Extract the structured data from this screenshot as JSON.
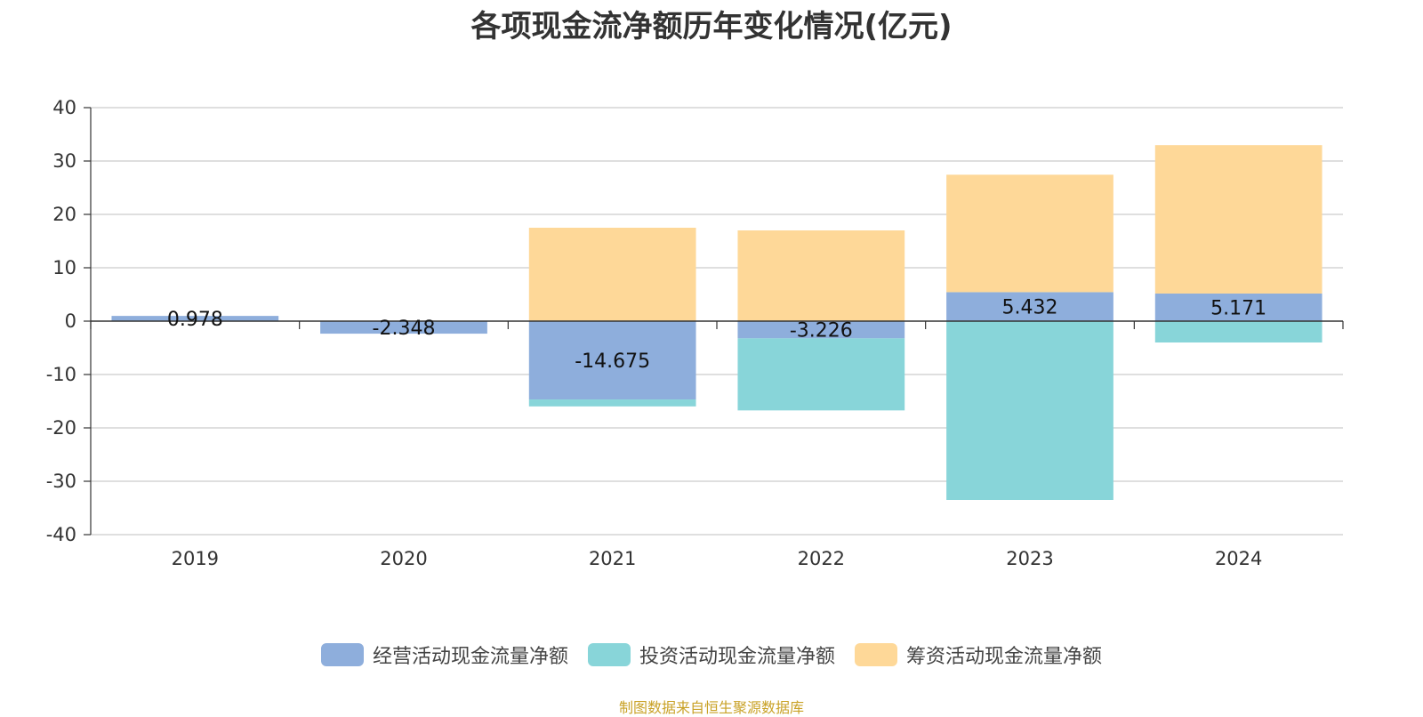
{
  "chart_data": {
    "type": "bar",
    "stacked": true,
    "title": "各项现金流净额历年变化情况(亿元)",
    "categories": [
      "2019",
      "2020",
      "2021",
      "2022",
      "2023",
      "2024"
    ],
    "series": [
      {
        "name": "经营活动现金流量净额",
        "color": "#8eaedc",
        "values": [
          0.978,
          -2.348,
          -14.675,
          -3.226,
          5.432,
          5.171
        ],
        "labels": [
          "0.978",
          "-2.348",
          "-14.675",
          "-3.226",
          "5.432",
          "5.171"
        ]
      },
      {
        "name": "投资活动现金流量净额",
        "color": "#88d5d9",
        "values": [
          0,
          0,
          -1.3,
          -13.5,
          -33.5,
          -4.0
        ]
      },
      {
        "name": "筹资活动现金流量净额",
        "color": "#fed898",
        "values": [
          0,
          0,
          17.5,
          17.0,
          22.0,
          27.8
        ]
      }
    ],
    "ylim": [
      -40,
      40
    ],
    "yticks": [
      40,
      30,
      20,
      10,
      0,
      -10,
      -20,
      -30,
      -40
    ],
    "grid": true,
    "legend": "bottom"
  },
  "source": "制图数据来自恒生聚源数据库"
}
